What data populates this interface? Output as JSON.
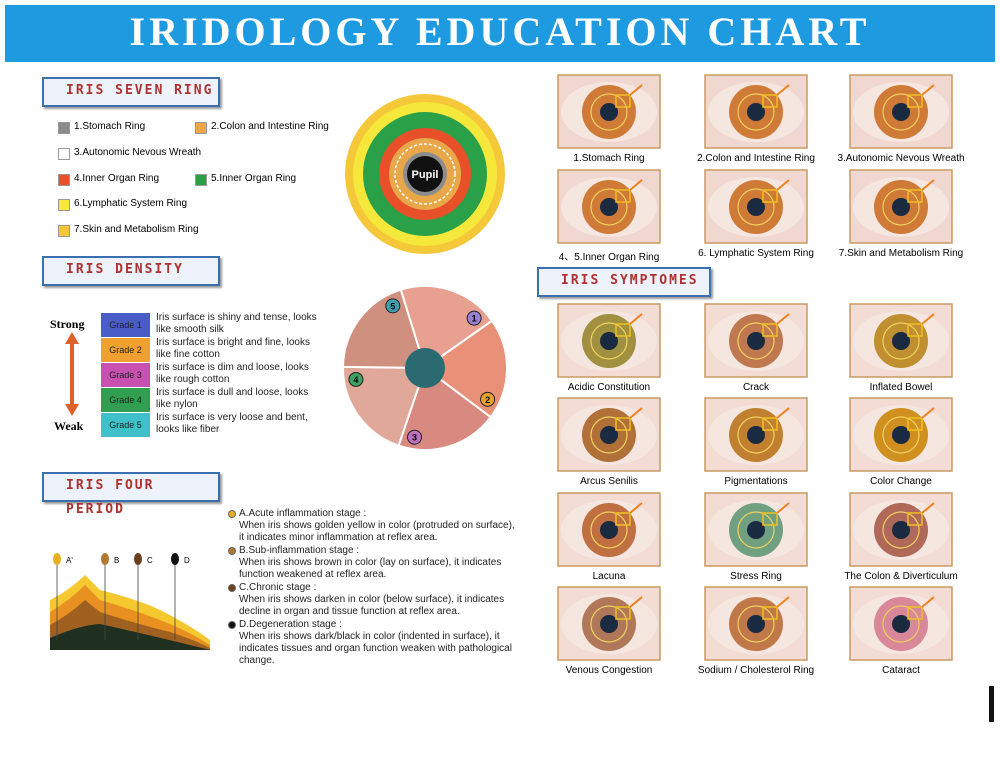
{
  "header": {
    "title": "IRIDOLOGY EDUCATION CHART"
  },
  "seven_ring": {
    "title": "IRIS SEVEN RING",
    "pupil": "Pupil",
    "items": [
      {
        "label": "1.Stomach Ring",
        "color": "#8c8c8c"
      },
      {
        "label": "2.Colon and Intestine Ring",
        "color": "#e8a84a"
      },
      {
        "label": "3.Autonomic Nevous Wreath",
        "color": "#ffffff"
      },
      {
        "label": "4.Inner Organ Ring",
        "color": "#e8502a"
      },
      {
        "label": "5.Inner Organ Ring",
        "color": "#2aa048"
      },
      {
        "label": "6.Lymphatic System Ring",
        "color": "#f5e83a"
      },
      {
        "label": "7.Skin and Metabolism Ring",
        "color": "#f5c83a"
      }
    ]
  },
  "density": {
    "title": "IRIS DENSITY",
    "strong": "Strong",
    "weak": "Weak",
    "grades": [
      {
        "grade": "Grade 1",
        "color": "#4a5cc8",
        "text": "Iris surface is shiny and tense, looks like smooth silk"
      },
      {
        "grade": "Grade 2",
        "color": "#f0a030",
        "text": "Iris surface is bright and fine, looks like fine cotton"
      },
      {
        "grade": "Grade 3",
        "color": "#c850b0",
        "text": "Iris surface is dim and loose, looks like rough cotton"
      },
      {
        "grade": "Grade 4",
        "color": "#30a050",
        "text": "Iris surface is dull and loose, looks like nylon"
      },
      {
        "grade": "Grade 5",
        "color": "#40c0c8",
        "text": "Iris surface is very loose and bent, looks like fiber"
      }
    ],
    "sectors": [
      "1",
      "2",
      "3",
      "4",
      "5"
    ]
  },
  "four_period": {
    "title": "IRIS FOUR PERIOD",
    "markers": [
      "A'",
      "B",
      "C",
      "D"
    ],
    "stages": [
      {
        "title": "A.Acute inflammation stage :",
        "text": "When iris shows golden yellow in color (protruded on surface), it indicates minor inflammation at reflex area.",
        "color": "#e8b020"
      },
      {
        "title": "B.Sub-inflammation stage :",
        "text": "When iris shows brown in color (lay on surface), it indicates function weakened at reflex area.",
        "color": "#b07830"
      },
      {
        "title": "C.Chronic stage :",
        "text": "When iris shows darken in color (below surface), it indicates decline in organ and tissue function at reflex area.",
        "color": "#6a4020"
      },
      {
        "title": "D.Degeneration stage :",
        "text": "When iris shows dark/black in color (indented in surface), it indicates tissues and organ function weaken with pathological change.",
        "color": "#111111"
      }
    ]
  },
  "rings": [
    "1.Stomach Ring",
    "2.Colon and Intestine Ring",
    "3.Autonomic Nevous Wreath",
    "4、5.Inner Organ Ring",
    "6. Lymphatic System Ring",
    "7.Skin and Metabolism Ring"
  ],
  "symptoms": {
    "title": "IRIS SYMPTOMES",
    "items": [
      "Acidic Constitution",
      "Crack",
      "Inflated Bowel",
      "Arcus Senilis",
      "Pigmentations",
      "Color Change",
      "Lacuna",
      "Stress Ring",
      "The Colon & Diverticulum",
      "Venous Congestion",
      "Sodium / Cholesterol Ring",
      "Cataract"
    ]
  }
}
